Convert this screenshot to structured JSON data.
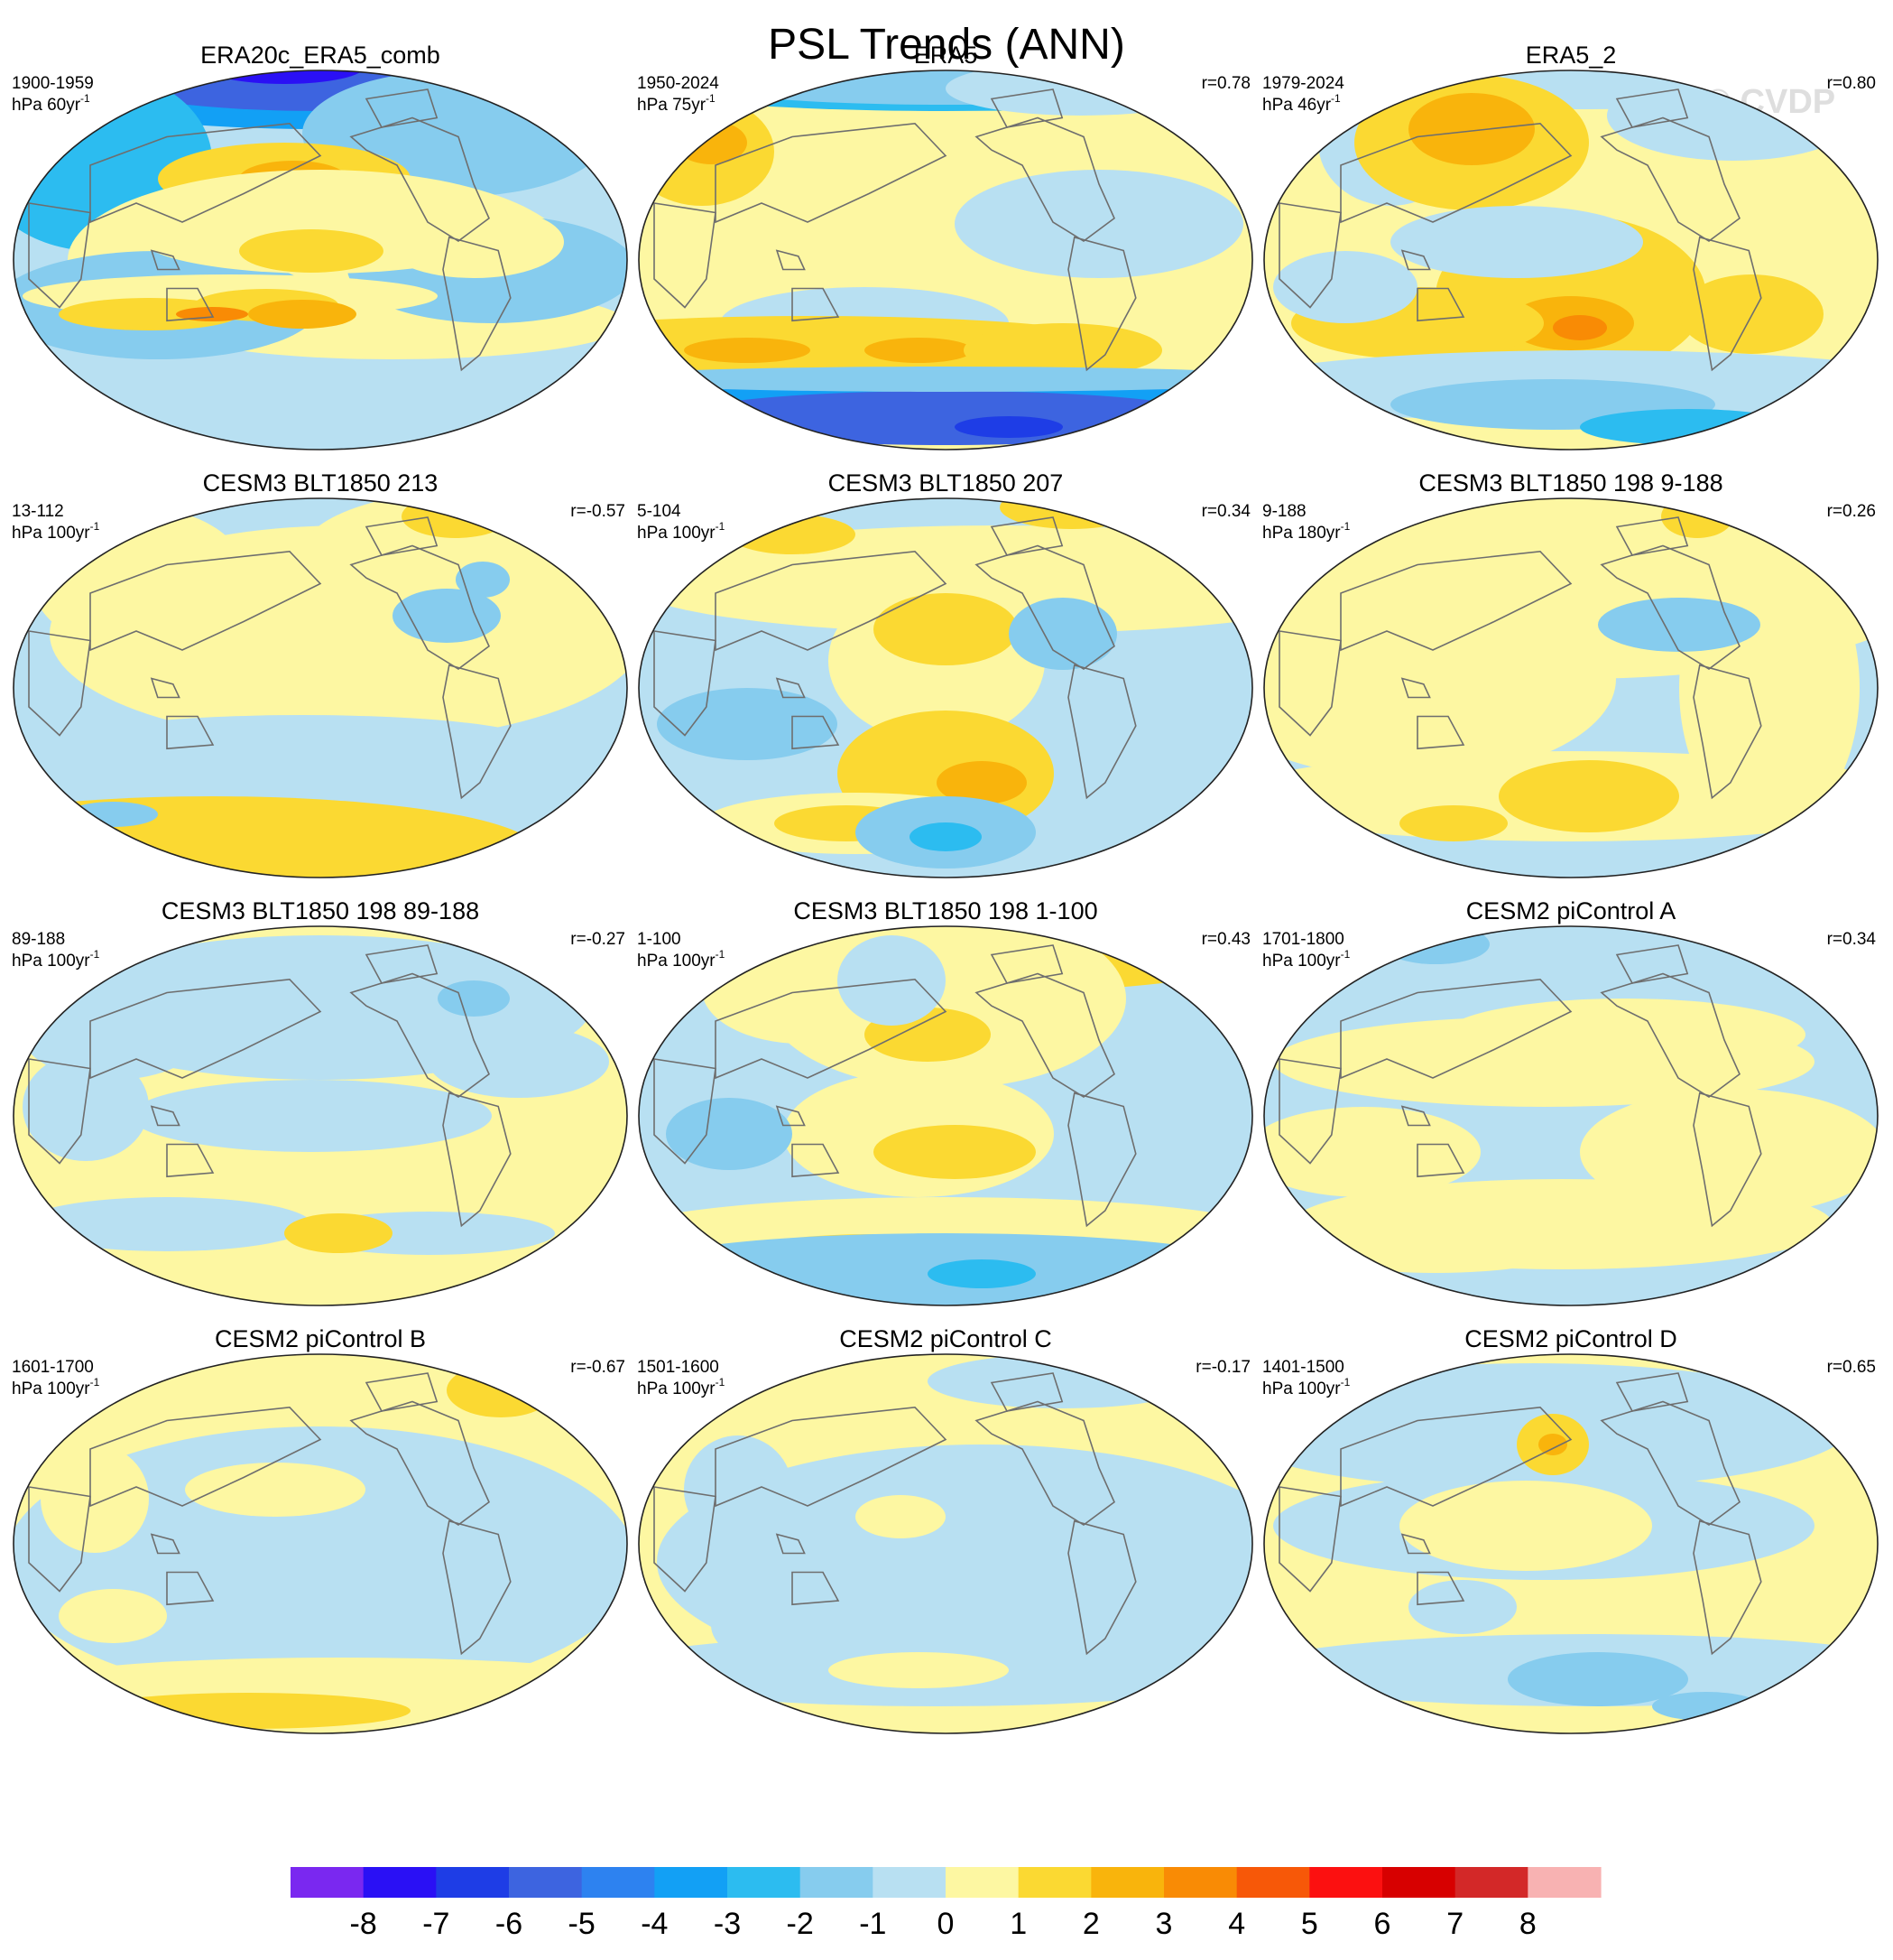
{
  "title": "PSL Trends (ANN)",
  "watermark": "© CVDP",
  "chart_data": {
    "type": "heatmap",
    "title": "PSL Trends (ANN)",
    "projection": "Robinson global maps, Pacific-centered",
    "panels": [
      {
        "title": "ERA20c_ERA5_comb",
        "period": "1900-1959",
        "units": "hPa 60yr",
        "units_exp": "-1",
        "r": "",
        "style": "A"
      },
      {
        "title": "ERA5",
        "period": "1950-2024",
        "units": "hPa 75yr",
        "units_exp": "-1",
        "r": "r=0.78",
        "style": "B"
      },
      {
        "title": "ERA5_2",
        "period": "1979-2024",
        "units": "hPa 46yr",
        "units_exp": "-1",
        "r": "r=0.80",
        "style": "C"
      },
      {
        "title": "CESM3 BLT1850 213",
        "period": "13-112",
        "units": "hPa 100yr",
        "units_exp": "-1",
        "r": "r=-0.57",
        "style": "D"
      },
      {
        "title": "CESM3 BLT1850 207",
        "period": "5-104",
        "units": "hPa 100yr",
        "units_exp": "-1",
        "r": "r=0.34",
        "style": "E"
      },
      {
        "title": "CESM3 BLT1850 198 9-188",
        "period": "9-188",
        "units": "hPa 180yr",
        "units_exp": "-1",
        "r": "r=0.26",
        "style": "F"
      },
      {
        "title": "CESM3 BLT1850 198 89-188",
        "period": "89-188",
        "units": "hPa 100yr",
        "units_exp": "-1",
        "r": "r=-0.27",
        "style": "G"
      },
      {
        "title": "CESM3 BLT1850 198 1-100",
        "period": "1-100",
        "units": "hPa 100yr",
        "units_exp": "-1",
        "r": "r=0.43",
        "style": "H"
      },
      {
        "title": "CESM2 piControl A",
        "period": "1701-1800",
        "units": "hPa 100yr",
        "units_exp": "-1",
        "r": "r=0.34",
        "style": "I"
      },
      {
        "title": "CESM2 piControl B",
        "period": "1601-1700",
        "units": "hPa 100yr",
        "units_exp": "-1",
        "r": "r=-0.67",
        "style": "J"
      },
      {
        "title": "CESM2 piControl C",
        "period": "1501-1600",
        "units": "hPa 100yr",
        "units_exp": "-1",
        "r": "r=-0.17",
        "style": "K"
      },
      {
        "title": "CESM2 piControl D",
        "period": "1401-1500",
        "units": "hPa 100yr",
        "units_exp": "-1",
        "r": "r=0.65",
        "style": "L"
      }
    ],
    "colorbar": {
      "colors": [
        "#7a28f0",
        "#2a10f5",
        "#1e3de6",
        "#3d64e0",
        "#2d82f0",
        "#12a0f5",
        "#2cbcf0",
        "#86ccee",
        "#b8e0f2",
        "#fdf7a2",
        "#fbd932",
        "#f9b40c",
        "#f98b05",
        "#f75808",
        "#fc1010",
        "#d70000",
        "#d32828",
        "#f8b2b2"
      ],
      "labels": [
        "-8",
        "-7",
        "-6",
        "-5",
        "-4",
        "-3",
        "-2",
        "-1",
        "0",
        "1",
        "2",
        "3",
        "4",
        "5",
        "6",
        "7",
        "8"
      ]
    }
  }
}
